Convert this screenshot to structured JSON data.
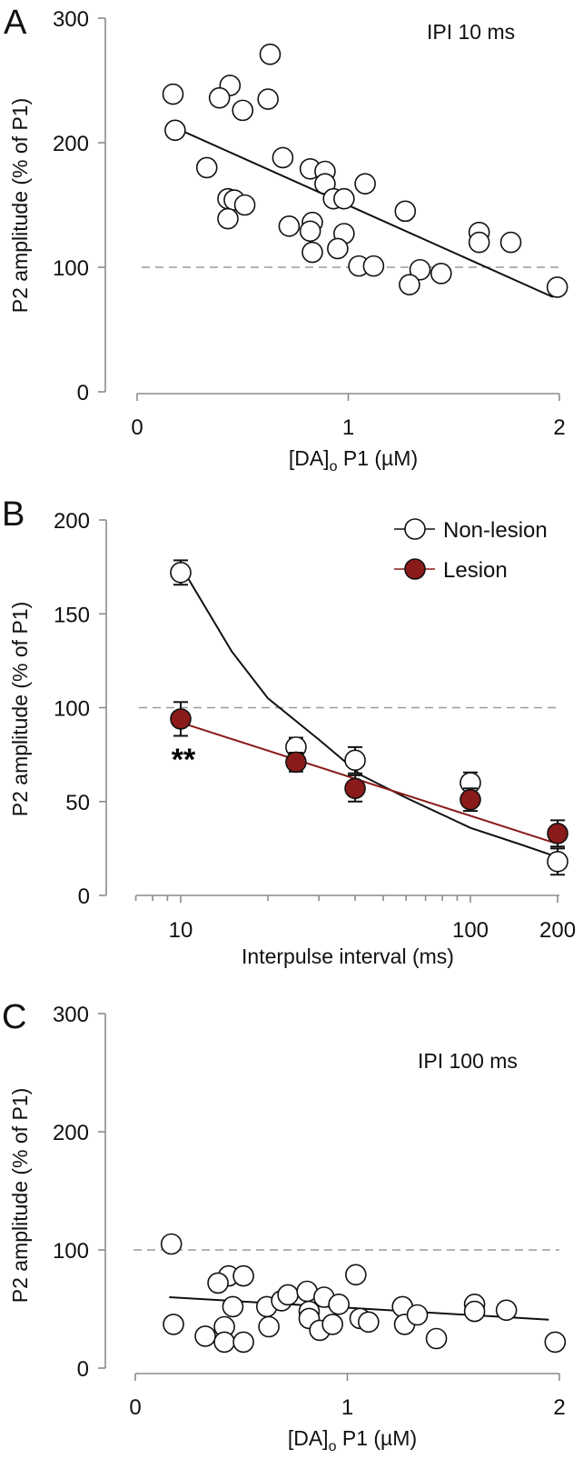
{
  "colors": {
    "lesion": "#8b1a1a",
    "non_lesion": "#ffffff",
    "axis": "#8a8a8a",
    "reference": "#9a9a9a"
  },
  "chart_data": [
    {
      "panel": "A",
      "type": "scatter",
      "annotation": "IPI 10 ms",
      "xlabel_pre": "[DA]",
      "xlabel_sub": "o",
      "xlabel_post": " P1 (µM)",
      "ylabel": "P2 amplitude  (% of P1)",
      "xlim": [
        0,
        2
      ],
      "ylim": [
        0,
        300
      ],
      "xticks": [
        "0",
        "1",
        "2"
      ],
      "yticks": [
        "0",
        "100",
        "200",
        "300"
      ],
      "reference_line": 100,
      "points": [
        [
          0.63,
          271
        ],
        [
          0.17,
          239
        ],
        [
          0.44,
          246
        ],
        [
          0.39,
          236
        ],
        [
          0.5,
          226
        ],
        [
          0.62,
          235
        ],
        [
          0.18,
          210
        ],
        [
          0.33,
          180
        ],
        [
          0.69,
          188
        ],
        [
          0.82,
          179
        ],
        [
          0.89,
          177
        ],
        [
          0.89,
          167
        ],
        [
          0.93,
          155
        ],
        [
          0.98,
          155
        ],
        [
          0.43,
          155
        ],
        [
          0.46,
          154
        ],
        [
          0.51,
          150
        ],
        [
          0.43,
          139
        ],
        [
          0.72,
          133
        ],
        [
          0.83,
          136
        ],
        [
          0.82,
          129
        ],
        [
          0.83,
          112
        ],
        [
          0.98,
          127
        ],
        [
          0.95,
          115
        ],
        [
          1.08,
          167
        ],
        [
          1.27,
          145
        ],
        [
          1.05,
          101
        ],
        [
          1.12,
          101
        ],
        [
          1.34,
          98
        ],
        [
          1.44,
          95
        ],
        [
          1.29,
          86
        ],
        [
          1.62,
          128
        ],
        [
          1.62,
          120
        ],
        [
          1.77,
          120
        ],
        [
          1.99,
          84
        ]
      ],
      "fit": [
        [
          0.22,
          209
        ],
        [
          1.97,
          76
        ]
      ]
    },
    {
      "panel": "B",
      "type": "line",
      "xscale": "log",
      "xlabel": "Interpulse interval (ms)",
      "ylabel": "P2 amplitude  (% of P1)",
      "xlim": [
        7,
        200
      ],
      "ylim": [
        0,
        200
      ],
      "xticks": [
        "10",
        "100",
        "200"
      ],
      "minor_xticks": [
        7,
        8,
        9,
        20,
        30,
        40,
        50,
        60,
        70,
        80,
        90
      ],
      "yticks": [
        "0",
        "50",
        "100",
        "150",
        "200"
      ],
      "reference_line": 100,
      "legend_position": "top-right",
      "significance": {
        "label": "**",
        "x": 10
      },
      "series": [
        {
          "name": "Non-lesion",
          "x": [
            10,
            25,
            40,
            100,
            200
          ],
          "y": [
            172,
            79,
            72,
            60,
            18
          ],
          "err": [
            6.5,
            5,
            7,
            5.5,
            7
          ],
          "fit": [
            [
              10.5,
              170
            ],
            [
              15,
              130
            ],
            [
              20,
              105
            ],
            [
              30,
              83
            ],
            [
              42,
              64
            ],
            [
              60,
              52
            ],
            [
              100,
              36
            ],
            [
              150,
              27
            ],
            [
              195,
              21
            ]
          ]
        },
        {
          "name": "Lesion",
          "x": [
            10,
            25,
            40,
            100,
            200
          ],
          "y": [
            94,
            71,
            57,
            51,
            33
          ],
          "err": [
            9,
            5,
            7,
            6,
            7
          ],
          "fit": [
            [
              10.5,
              91
            ],
            [
              195,
              28
            ]
          ]
        }
      ]
    },
    {
      "panel": "C",
      "type": "scatter",
      "annotation": "IPI 100 ms",
      "xlabel_pre": "[DA]",
      "xlabel_sub": "o",
      "xlabel_post": " P1 (µM)",
      "ylabel": "P2 amplitude  (% of P1)",
      "xlim": [
        0,
        2
      ],
      "ylim": [
        0,
        300
      ],
      "xticks": [
        "0",
        "1",
        "2"
      ],
      "yticks": [
        "0",
        "100",
        "200",
        "300"
      ],
      "reference_line": 100,
      "points": [
        [
          0.17,
          105
        ],
        [
          0.18,
          37
        ],
        [
          0.44,
          78
        ],
        [
          0.39,
          72
        ],
        [
          0.51,
          78
        ],
        [
          0.46,
          52
        ],
        [
          0.62,
          52
        ],
        [
          0.69,
          57
        ],
        [
          0.72,
          62
        ],
        [
          0.81,
          65
        ],
        [
          0.89,
          60
        ],
        [
          0.96,
          54
        ],
        [
          0.82,
          48
        ],
        [
          0.82,
          42
        ],
        [
          0.87,
          32
        ],
        [
          0.93,
          37
        ],
        [
          1.06,
          42
        ],
        [
          1.1,
          39
        ],
        [
          0.63,
          35
        ],
        [
          0.42,
          35
        ],
        [
          0.33,
          27
        ],
        [
          0.42,
          22
        ],
        [
          0.51,
          22
        ],
        [
          1.04,
          79
        ],
        [
          1.26,
          52
        ],
        [
          1.27,
          37
        ],
        [
          1.33,
          45
        ],
        [
          1.42,
          25
        ],
        [
          1.6,
          54
        ],
        [
          1.6,
          48
        ],
        [
          1.75,
          49
        ],
        [
          1.98,
          22
        ]
      ],
      "fit": [
        [
          0.16,
          60
        ],
        [
          1.95,
          41
        ]
      ]
    }
  ]
}
